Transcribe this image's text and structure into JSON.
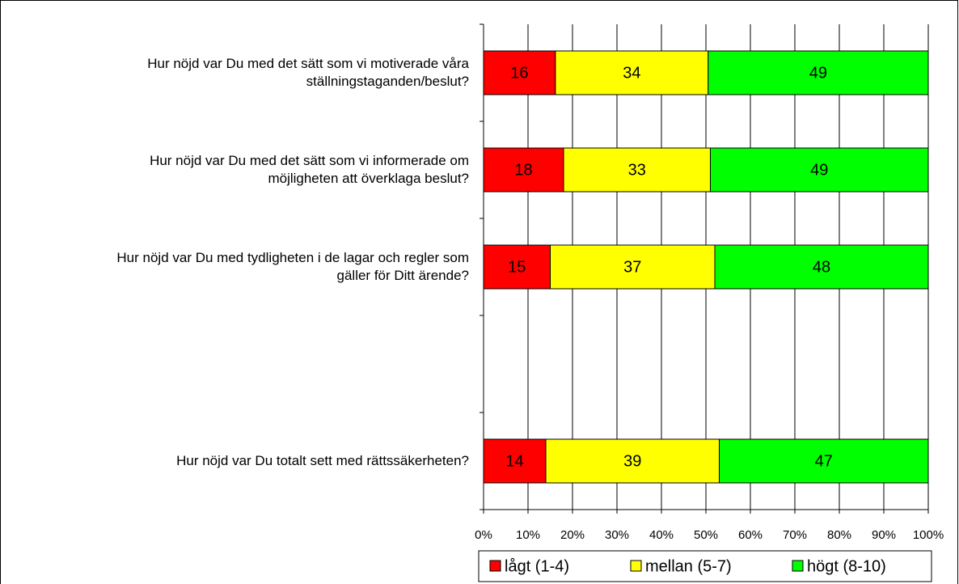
{
  "chart_data": {
    "type": "bar",
    "orientation": "horizontal",
    "categories": [
      "Hur nöjd var Du med det sätt som vi motiverade våra\nställningstaganden/beslut?",
      "Hur nöjd var Du med det sätt som vi informerade om\nmöjligheten att överklaga beslut?",
      "Hur nöjd var Du med tydligheten i de lagar och regler som\ngäller för Ditt ärende?",
      null,
      "Hur nöjd var Du totalt sett med rättssäkerheten?"
    ],
    "series": [
      {
        "name": "lågt (1-4)",
        "color": "#ff0000",
        "values": [
          16,
          18,
          15,
          null,
          14
        ]
      },
      {
        "name": "mellan (5-7)",
        "color": "#ffff00",
        "values": [
          34,
          33,
          37,
          null,
          39
        ]
      },
      {
        "name": "högt (8-10)",
        "color": "#00ff00",
        "values": [
          49,
          49,
          48,
          null,
          47
        ]
      }
    ],
    "xlim": [
      0,
      100
    ],
    "xticks": [
      {
        "value": 0,
        "label": "0%"
      },
      {
        "value": 10,
        "label": "10%"
      },
      {
        "value": 20,
        "label": "20%"
      },
      {
        "value": 30,
        "label": "30%"
      },
      {
        "value": 40,
        "label": "40%"
      },
      {
        "value": 50,
        "label": "50%"
      },
      {
        "value": 60,
        "label": "60%"
      },
      {
        "value": 70,
        "label": "70%"
      },
      {
        "value": 80,
        "label": "80%"
      },
      {
        "value": 90,
        "label": "90%"
      },
      {
        "value": 100,
        "label": "100%"
      }
    ],
    "grid": true,
    "legend": "bottom"
  }
}
